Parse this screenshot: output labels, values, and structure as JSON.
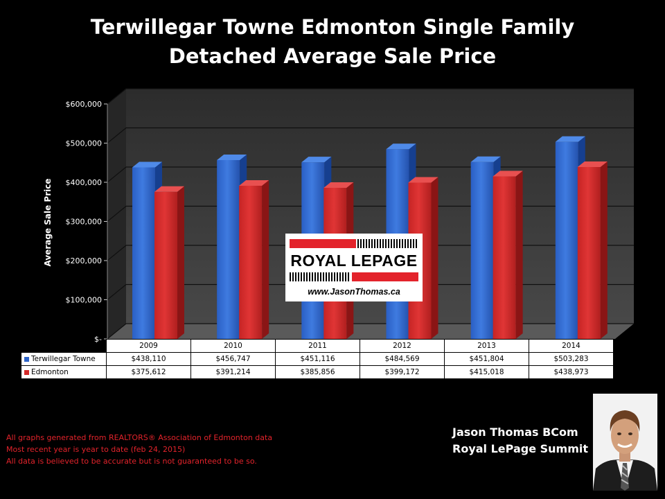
{
  "chart_data": {
    "type": "bar",
    "title_lines": [
      "Terwillegar Towne Edmonton Single Family",
      "Detached Average Sale Price"
    ],
    "ylabel": "Average Sale Price",
    "xlabel": "",
    "ylim": [
      0,
      600000
    ],
    "y_ticks": [
      {
        "value": 0,
        "label": "$-"
      },
      {
        "value": 100000,
        "label": "$100,000"
      },
      {
        "value": 200000,
        "label": "$200,000"
      },
      {
        "value": 300000,
        "label": "$300,000"
      },
      {
        "value": 400000,
        "label": "$400,000"
      },
      {
        "value": 500000,
        "label": "$500,000"
      },
      {
        "value": 600000,
        "label": "$600,000"
      }
    ],
    "grid": true,
    "legend": "data-table",
    "categories": [
      "2009",
      "2010",
      "2011",
      "2012",
      "2013",
      "2014"
    ],
    "series": [
      {
        "name": "Terwillegar Towne",
        "color": "#2e64c8",
        "values": [
          438110,
          456747,
          451116,
          484569,
          451804,
          503283
        ],
        "labels": [
          "$438,110",
          "$456,747",
          "$451,116",
          "$484,569",
          "$451,804",
          "$503,283"
        ]
      },
      {
        "name": "Edmonton",
        "color": "#d42a2a",
        "values": [
          375612,
          391214,
          385856,
          399172,
          415018,
          438973
        ],
        "labels": [
          "$375,612",
          "$391,214",
          "$385,856",
          "$399,172",
          "$415,018",
          "$438,973"
        ]
      }
    ]
  },
  "logo": {
    "brand": "ROYAL LEPAGE",
    "url": "www.JasonThomas.ca"
  },
  "disclaimer": [
    "All graphs generated from REALTORS® Association of Edmonton data",
    "Most recent year is year to date (feb 24, 2015)",
    "All data is believed to be accurate but is not guaranteed to be so."
  ],
  "agent": {
    "name": "Jason Thomas BCom",
    "company": "Royal LePage Summit"
  },
  "photo": {
    "icon": "agent-portrait"
  }
}
